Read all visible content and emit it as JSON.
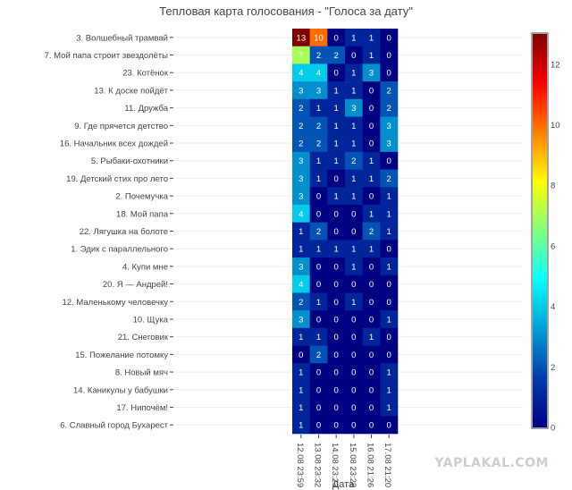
{
  "chart_data": {
    "type": "heatmap",
    "title": "Тепловая карта голосования - \"Голоса за дату\"",
    "xlabel": "Дата",
    "ylabel": "",
    "x": [
      "12.08 23:59",
      "13.08 23:32",
      "14.08 23:23",
      "15.08 23:28",
      "16.08 21:26",
      "17.08 21:20"
    ],
    "y": [
      "3. Волшебный трамвай",
      "7. Мой папа строит звездолёты",
      "23. Котёнок",
      "13. К доске пойдёт",
      "11. Дружба",
      "9. Где прячется детство",
      "16. Начальник всех дождей",
      "5. Рыбаки-охотники",
      "19. Детский стих про лето",
      "2. Почемучка",
      "18. Мой папа",
      "22. Лягушка на болоте",
      "1. Эдик с параллельного",
      "4. Купи мне",
      "20. Я — Андрей!",
      "12. Маленькому человечку",
      "10. Щука",
      "21. Снеговик",
      "15. Пожелание потомку",
      "8. Новый мяч",
      "14. Каникулы у бабушки",
      "17. Нипочём!",
      "6. Славный город Бухарест"
    ],
    "z": [
      [
        13,
        10,
        0,
        1,
        1,
        0
      ],
      [
        7,
        2,
        2,
        0,
        1,
        0
      ],
      [
        4,
        4,
        0,
        1,
        3,
        0
      ],
      [
        3,
        3,
        1,
        1,
        0,
        2
      ],
      [
        2,
        1,
        1,
        3,
        0,
        2
      ],
      [
        2,
        2,
        1,
        1,
        0,
        3
      ],
      [
        2,
        2,
        1,
        1,
        0,
        3
      ],
      [
        3,
        1,
        1,
        2,
        1,
        0
      ],
      [
        3,
        1,
        0,
        1,
        1,
        2
      ],
      [
        3,
        0,
        1,
        1,
        0,
        1
      ],
      [
        4,
        0,
        0,
        0,
        1,
        1
      ],
      [
        1,
        2,
        0,
        0,
        2,
        1
      ],
      [
        1,
        1,
        1,
        1,
        1,
        0
      ],
      [
        3,
        0,
        0,
        1,
        0,
        1
      ],
      [
        4,
        0,
        0,
        0,
        0,
        0
      ],
      [
        2,
        1,
        0,
        1,
        0,
        0
      ],
      [
        3,
        0,
        0,
        0,
        0,
        1
      ],
      [
        1,
        1,
        0,
        0,
        1,
        0
      ],
      [
        0,
        2,
        0,
        0,
        0,
        0
      ],
      [
        1,
        0,
        0,
        0,
        0,
        1
      ],
      [
        1,
        0,
        0,
        0,
        0,
        1
      ],
      [
        1,
        0,
        0,
        0,
        0,
        1
      ],
      [
        1,
        0,
        0,
        0,
        0,
        0
      ]
    ],
    "zlim": [
      0,
      13
    ],
    "colorbar_ticks": [
      0,
      2,
      4,
      6,
      8,
      10,
      12
    ],
    "colorscale": "Jet",
    "colorscale_stops": [
      "#000083",
      "#003caa",
      "#05ffff",
      "#ffff00",
      "#fa0000",
      "#800000"
    ],
    "grid": true
  },
  "watermark": "YAPLAKAL.COM"
}
